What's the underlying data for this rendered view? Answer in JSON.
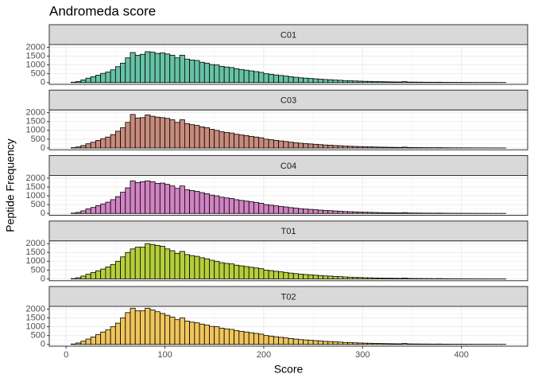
{
  "chart_data": {
    "type": "histogram",
    "title": "Andromeda score",
    "x_label": "Score",
    "y_label": "Peptide Frequency",
    "bins": [
      5,
      10,
      15,
      20,
      25,
      30,
      35,
      40,
      45,
      50,
      55,
      60,
      65,
      70,
      75,
      80,
      85,
      90,
      95,
      100,
      105,
      110,
      115,
      120,
      125,
      130,
      135,
      140,
      145,
      150,
      155,
      160,
      165,
      170,
      175,
      180,
      185,
      190,
      195,
      200,
      205,
      210,
      215,
      220,
      225,
      230,
      235,
      240,
      245,
      250,
      255,
      260,
      265,
      270,
      275,
      280,
      285,
      290,
      295,
      300,
      305,
      310,
      315,
      320,
      325,
      330,
      335,
      340,
      345,
      350,
      355,
      360,
      365,
      370,
      375,
      380,
      385,
      390,
      395,
      400,
      405,
      410,
      415,
      420,
      425,
      430,
      435,
      440,
      445
    ],
    "xlim": [
      -17,
      467
    ],
    "xticks": [
      0,
      100,
      200,
      300,
      400
    ],
    "ylim": [
      -102.5,
      2152.5
    ],
    "yticks": [
      0,
      500,
      1000,
      1500,
      2000
    ],
    "grid": true,
    "series": [
      {
        "name": "C01",
        "color": "#66c2a5",
        "values": [
          20,
          60,
          150,
          250,
          330,
          420,
          520,
          600,
          720,
          900,
          1100,
          1400,
          1700,
          1550,
          1600,
          1750,
          1720,
          1650,
          1680,
          1620,
          1550,
          1400,
          1550,
          1330,
          1280,
          1250,
          1150,
          1100,
          1020,
          1000,
          920,
          880,
          850,
          780,
          740,
          700,
          660,
          620,
          580,
          500,
          470,
          430,
          400,
          370,
          330,
          300,
          270,
          250,
          230,
          210,
          190,
          170,
          160,
          140,
          130,
          110,
          100,
          90,
          80,
          70,
          65,
          55,
          50,
          45,
          40,
          35,
          32,
          50,
          28,
          24,
          22,
          20,
          18,
          16,
          20,
          14,
          12,
          10,
          10,
          9,
          8,
          7,
          6,
          6,
          5,
          5,
          4,
          4
        ]
      },
      {
        "name": "C03",
        "color": "#c78b7c",
        "values": [
          20,
          60,
          140,
          240,
          330,
          430,
          530,
          620,
          760,
          950,
          1150,
          1450,
          1900,
          1700,
          1720,
          1880,
          1800,
          1750,
          1720,
          1680,
          1600,
          1450,
          1600,
          1380,
          1320,
          1280,
          1200,
          1150,
          1060,
          1000,
          920,
          880,
          850,
          780,
          740,
          700,
          660,
          620,
          580,
          500,
          470,
          430,
          400,
          370,
          330,
          300,
          270,
          250,
          230,
          210,
          190,
          170,
          160,
          140,
          130,
          110,
          100,
          90,
          80,
          70,
          65,
          55,
          50,
          45,
          40,
          35,
          32,
          50,
          28,
          24,
          22,
          20,
          18,
          16,
          20,
          14,
          12,
          10,
          10,
          9,
          8,
          7,
          6,
          6,
          5,
          5,
          4,
          4
        ]
      },
      {
        "name": "C04",
        "color": "#d283c4",
        "values": [
          20,
          60,
          150,
          260,
          340,
          440,
          540,
          640,
          780,
          950,
          1200,
          1450,
          1850,
          1750,
          1800,
          1850,
          1800,
          1700,
          1720,
          1650,
          1560,
          1420,
          1560,
          1350,
          1300,
          1250,
          1180,
          1120,
          1040,
          1000,
          920,
          880,
          850,
          780,
          740,
          700,
          660,
          620,
          580,
          500,
          470,
          430,
          400,
          370,
          330,
          300,
          270,
          250,
          230,
          210,
          190,
          170,
          160,
          140,
          130,
          110,
          100,
          90,
          80,
          70,
          65,
          55,
          50,
          45,
          40,
          35,
          32,
          50,
          28,
          24,
          22,
          20,
          18,
          16,
          20,
          14,
          12,
          10,
          10,
          9,
          8,
          7,
          6,
          6,
          5,
          5,
          4,
          4
        ]
      },
      {
        "name": "T01",
        "color": "#b5cf3b",
        "values": [
          20,
          70,
          160,
          270,
          360,
          460,
          560,
          680,
          820,
          1000,
          1250,
          1500,
          1700,
          1800,
          1800,
          2000,
          1950,
          1900,
          1850,
          1700,
          1600,
          1450,
          1560,
          1380,
          1320,
          1280,
          1200,
          1140,
          1060,
          1000,
          920,
          880,
          850,
          780,
          740,
          700,
          660,
          620,
          580,
          500,
          470,
          430,
          400,
          370,
          330,
          300,
          270,
          250,
          230,
          210,
          190,
          170,
          160,
          140,
          130,
          110,
          100,
          90,
          80,
          70,
          65,
          55,
          50,
          45,
          40,
          35,
          32,
          50,
          28,
          24,
          22,
          20,
          18,
          16,
          20,
          14,
          12,
          10,
          10,
          9,
          8,
          7,
          6,
          6,
          5,
          5,
          4,
          4
        ]
      },
      {
        "name": "T02",
        "color": "#f0c55c",
        "values": [
          20,
          80,
          180,
          300,
          420,
          560,
          700,
          820,
          1000,
          1200,
          1500,
          1800,
          2050,
          1900,
          1900,
          2050,
          1950,
          1850,
          1750,
          1650,
          1550,
          1400,
          1500,
          1320,
          1260,
          1220,
          1150,
          1100,
          1020,
          1000,
          920,
          880,
          850,
          780,
          740,
          700,
          660,
          620,
          580,
          500,
          470,
          430,
          400,
          370,
          330,
          300,
          270,
          250,
          230,
          210,
          190,
          170,
          160,
          140,
          130,
          110,
          100,
          90,
          80,
          70,
          65,
          55,
          50,
          45,
          40,
          35,
          32,
          50,
          28,
          24,
          22,
          20,
          18,
          16,
          20,
          14,
          12,
          10,
          10,
          9,
          8,
          7,
          6,
          6,
          5,
          5,
          4,
          4
        ]
      }
    ]
  }
}
